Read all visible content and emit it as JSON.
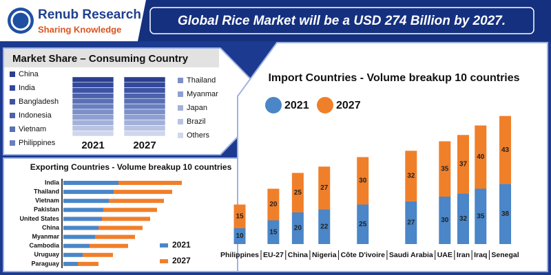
{
  "header": {
    "logo_name": "Renub Research",
    "logo_tagline": "Sharing Knowledge",
    "headline": "Global Rice Market will be a USD 274 Billion by 2027."
  },
  "chart_data": [
    {
      "type": "stacked_bar",
      "title": "Market Share – Consuming Country",
      "categories": [
        "2021",
        "2027"
      ],
      "series": [
        {
          "name": "China",
          "color": "#2b3f91",
          "values": [
            9,
            9
          ]
        },
        {
          "name": "India",
          "color": "#34499b",
          "values": [
            9,
            9
          ]
        },
        {
          "name": "Bangladesh",
          "color": "#3d54a4",
          "values": [
            9,
            9
          ]
        },
        {
          "name": "Indonesia",
          "color": "#4b62ad",
          "values": [
            9,
            9
          ]
        },
        {
          "name": "Vietnam",
          "color": "#5a70b6",
          "values": [
            9,
            9
          ]
        },
        {
          "name": "Philippines",
          "color": "#6a7fbf",
          "values": [
            9,
            9
          ]
        },
        {
          "name": "Thailand",
          "color": "#7c8fc8",
          "values": [
            9,
            9
          ]
        },
        {
          "name": "Myanmar",
          "color": "#8f9fd1",
          "values": [
            9,
            9
          ]
        },
        {
          "name": "Japan",
          "color": "#a3b1da",
          "values": [
            9,
            9
          ]
        },
        {
          "name": "Brazil",
          "color": "#b8c3e3",
          "values": [
            9,
            9
          ]
        },
        {
          "name": "Others",
          "color": "#d0d7ec",
          "values": [
            9,
            9
          ]
        }
      ]
    },
    {
      "type": "stacked_bar",
      "orientation": "horizontal",
      "title": "Exporting Countries - Volume breakup 10 countries",
      "categories": [
        "India",
        "Thailand",
        "Vietnam",
        "Pakistan",
        "United States",
        "China",
        "Myanmar",
        "Cambodia",
        "Uruguay",
        "Paraguay"
      ],
      "series": [
        {
          "name": "2021",
          "color": "#4a86c8",
          "values": [
            80,
            73,
            66,
            58,
            56,
            51,
            46,
            38,
            28,
            21
          ]
        },
        {
          "name": "2027",
          "color": "#f07f2a",
          "values": [
            92,
            85,
            80,
            78,
            70,
            64,
            58,
            56,
            44,
            30
          ]
        }
      ]
    },
    {
      "type": "stacked_bar",
      "title": "Import Countries - Volume breakup 10 countries",
      "categories": [
        "Philippines",
        "EU-27",
        "China",
        "Nigeria",
        "Côte D'ivoire",
        "Saudi Arabia",
        "UAE",
        "Iran",
        "Iraq",
        "Senegal"
      ],
      "series": [
        {
          "name": "2021",
          "color": "#4a86c8",
          "values": [
            10,
            15,
            20,
            22,
            25,
            27,
            30,
            32,
            35,
            38
          ]
        },
        {
          "name": "2027",
          "color": "#f07f2a",
          "values": [
            15,
            20,
            25,
            27,
            30,
            32,
            35,
            37,
            40,
            43
          ]
        }
      ]
    }
  ]
}
